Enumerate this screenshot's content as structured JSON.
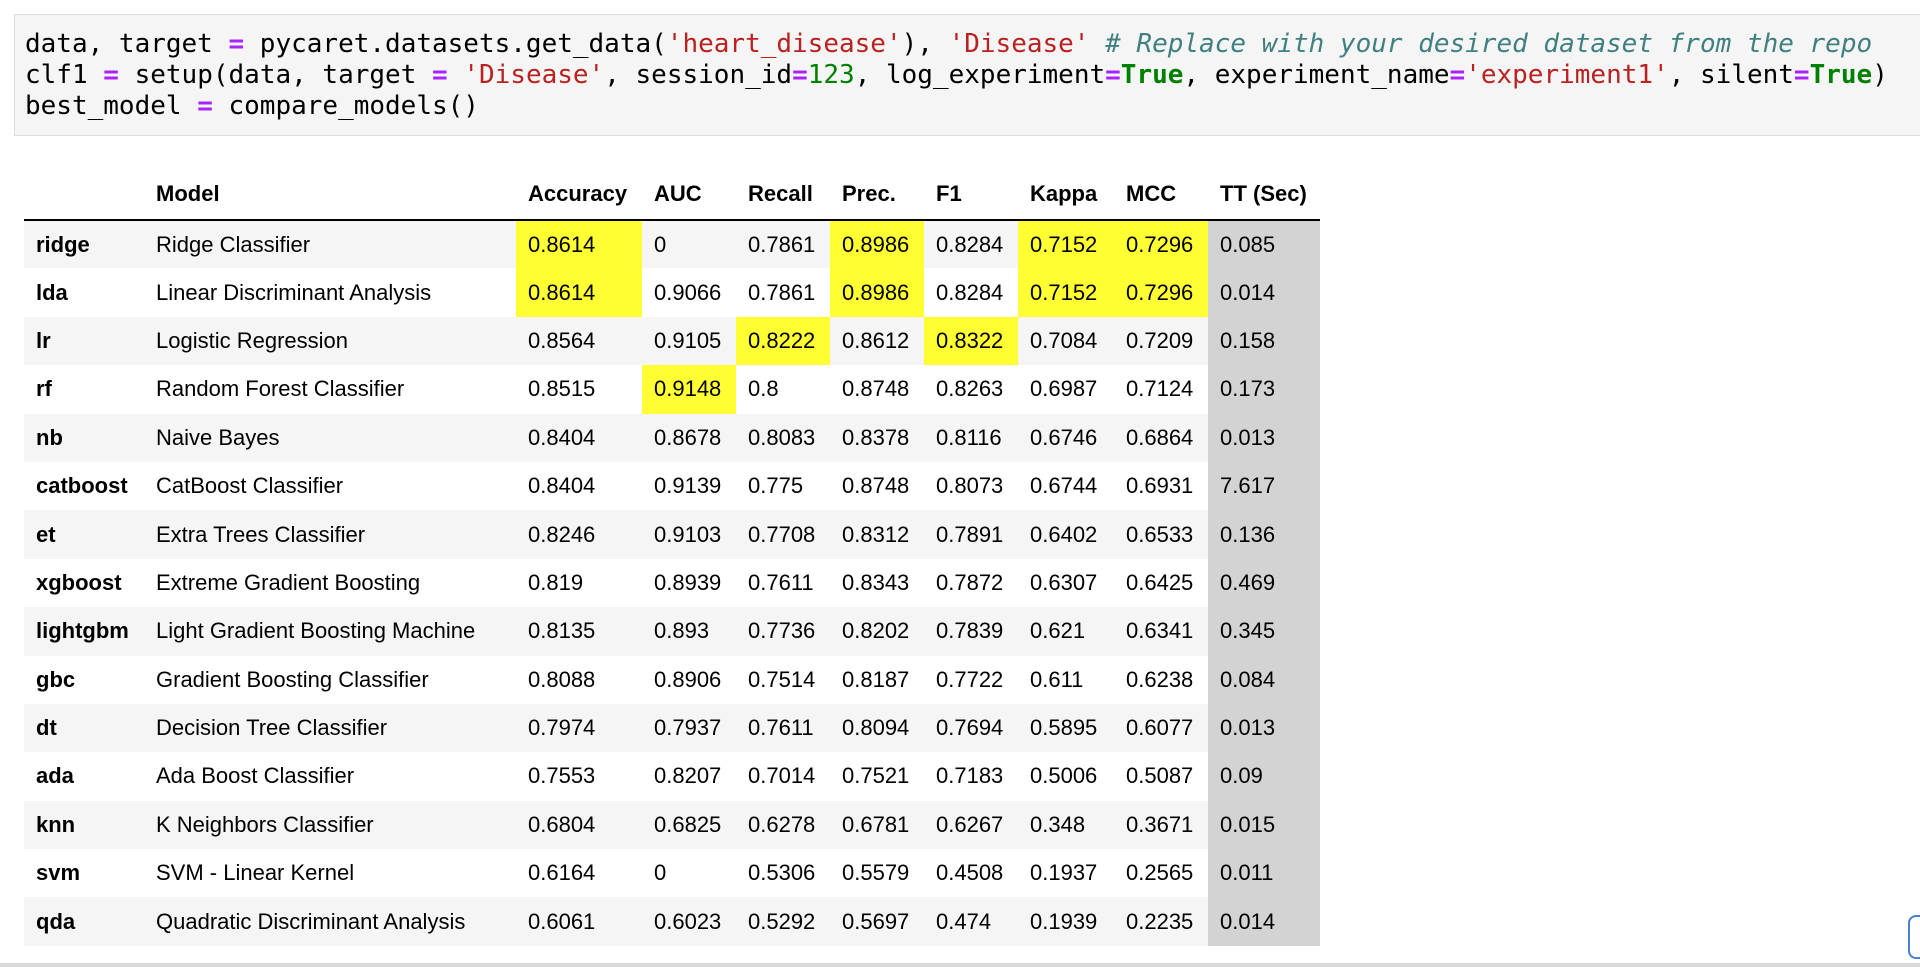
{
  "code_cell": {
    "line1": {
      "a": "data, target ",
      "op1": "=",
      "b": " pycaret.datasets.get_data(",
      "s1": "'heart_disease'",
      "c": "), ",
      "s2": "'Disease'",
      "d": " ",
      "comment": "# Replace with your desired dataset from the repo"
    },
    "line2": {
      "a": "clf1 ",
      "op1": "=",
      "b": " setup(data, target ",
      "op2": "=",
      "c": " ",
      "s1": "'Disease'",
      "d": ", session_id",
      "op3": "=",
      "n1": "123",
      "e": ", log_experiment",
      "op4": "=",
      "k1": "True",
      "f": ", experiment_name",
      "op5": "=",
      "s2": "'experiment1'",
      "g": ", silent",
      "op6": "=",
      "k2": "True",
      "h": ")"
    },
    "line3": {
      "a": "best_model ",
      "op1": "=",
      "b": " compare_models()"
    }
  },
  "table": {
    "headers": [
      "",
      "Model",
      "Accuracy",
      "AUC",
      "Recall",
      "Prec.",
      "F1",
      "Kappa",
      "MCC",
      "TT (Sec)"
    ],
    "rows": [
      [
        "ridge",
        "Ridge Classifier",
        "0.8614",
        "0",
        "0.7861",
        "0.8986",
        "0.8284",
        "0.7152",
        "0.7296",
        "0.085"
      ],
      [
        "lda",
        "Linear Discriminant Analysis",
        "0.8614",
        "0.9066",
        "0.7861",
        "0.8986",
        "0.8284",
        "0.7152",
        "0.7296",
        "0.014"
      ],
      [
        "lr",
        "Logistic Regression",
        "0.8564",
        "0.9105",
        "0.8222",
        "0.8612",
        "0.8322",
        "0.7084",
        "0.7209",
        "0.158"
      ],
      [
        "rf",
        "Random Forest Classifier",
        "0.8515",
        "0.9148",
        "0.8",
        "0.8748",
        "0.8263",
        "0.6987",
        "0.7124",
        "0.173"
      ],
      [
        "nb",
        "Naive Bayes",
        "0.8404",
        "0.8678",
        "0.8083",
        "0.8378",
        "0.8116",
        "0.6746",
        "0.6864",
        "0.013"
      ],
      [
        "catboost",
        "CatBoost Classifier",
        "0.8404",
        "0.9139",
        "0.775",
        "0.8748",
        "0.8073",
        "0.6744",
        "0.6931",
        "7.617"
      ],
      [
        "et",
        "Extra Trees Classifier",
        "0.8246",
        "0.9103",
        "0.7708",
        "0.8312",
        "0.7891",
        "0.6402",
        "0.6533",
        "0.136"
      ],
      [
        "xgboost",
        "Extreme Gradient Boosting",
        "0.819",
        "0.8939",
        "0.7611",
        "0.8343",
        "0.7872",
        "0.6307",
        "0.6425",
        "0.469"
      ],
      [
        "lightgbm",
        "Light Gradient Boosting Machine",
        "0.8135",
        "0.893",
        "0.7736",
        "0.8202",
        "0.7839",
        "0.621",
        "0.6341",
        "0.345"
      ],
      [
        "gbc",
        "Gradient Boosting Classifier",
        "0.8088",
        "0.8906",
        "0.7514",
        "0.8187",
        "0.7722",
        "0.611",
        "0.6238",
        "0.084"
      ],
      [
        "dt",
        "Decision Tree Classifier",
        "0.7974",
        "0.7937",
        "0.7611",
        "0.8094",
        "0.7694",
        "0.5895",
        "0.6077",
        "0.013"
      ],
      [
        "ada",
        "Ada Boost Classifier",
        "0.7553",
        "0.8207",
        "0.7014",
        "0.7521",
        "0.7183",
        "0.5006",
        "0.5087",
        "0.09"
      ],
      [
        "knn",
        "K Neighbors Classifier",
        "0.6804",
        "0.6825",
        "0.6278",
        "0.6781",
        "0.6267",
        "0.348",
        "0.3671",
        "0.015"
      ],
      [
        "svm",
        "SVM - Linear Kernel",
        "0.6164",
        "0",
        "0.5306",
        "0.5579",
        "0.4508",
        "0.1937",
        "0.2565",
        "0.011"
      ],
      [
        "qda",
        "Quadratic Discriminant Analysis",
        "0.6061",
        "0.6023",
        "0.5292",
        "0.5697",
        "0.474",
        "0.1939",
        "0.2235",
        "0.014"
      ]
    ],
    "highlighted_cells": [
      [
        0,
        2
      ],
      [
        0,
        5
      ],
      [
        0,
        7
      ],
      [
        0,
        8
      ],
      [
        1,
        2
      ],
      [
        1,
        5
      ],
      [
        1,
        7
      ],
      [
        1,
        8
      ],
      [
        2,
        4
      ],
      [
        2,
        6
      ],
      [
        3,
        3
      ]
    ],
    "highlight_color": "#ffff33",
    "tt_column_color": "#d3d3d3",
    "stripe_color": "#f5f5f5"
  }
}
